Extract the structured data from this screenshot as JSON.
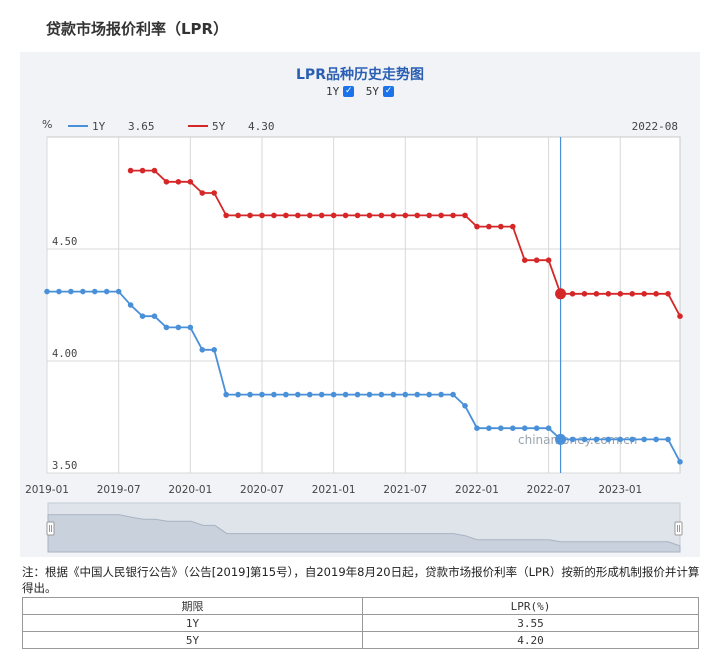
{
  "page": {
    "title": "贷款市场报价利率（LPR）"
  },
  "chart_controls": {
    "title": "LPR品种历史走势图",
    "toggles": [
      {
        "label": "1Y",
        "checked": true
      },
      {
        "label": "5Y",
        "checked": true
      }
    ]
  },
  "chart_data": {
    "type": "line",
    "title": "LPR品种历史走势图",
    "ylabel": "%",
    "ylim": [
      3.5,
      5.0
    ],
    "yticks": [
      "3.50",
      "4.00",
      "4.50"
    ],
    "x_range": [
      "2019-01",
      "2023-06"
    ],
    "xticks": [
      "2019-01",
      "2019-07",
      "2020-01",
      "2020-07",
      "2021-01",
      "2021-07",
      "2022-01",
      "2022-07",
      "2023-01"
    ],
    "grid": true,
    "legend_position": "top-left",
    "tooltip_date": "2022-08",
    "hover_month": "2022-08",
    "watermark": "chinamoney.com.cn",
    "series": [
      {
        "name": "1Y",
        "color": "#4a90d9",
        "current": "3.65",
        "x": [
          "2019-01",
          "2019-02",
          "2019-03",
          "2019-04",
          "2019-05",
          "2019-06",
          "2019-07",
          "2019-08",
          "2019-09",
          "2019-10",
          "2019-11",
          "2019-12",
          "2020-01",
          "2020-02",
          "2020-03",
          "2020-04",
          "2020-05",
          "2020-06",
          "2020-07",
          "2020-08",
          "2020-09",
          "2020-10",
          "2020-11",
          "2020-12",
          "2021-01",
          "2021-02",
          "2021-03",
          "2021-04",
          "2021-05",
          "2021-06",
          "2021-07",
          "2021-08",
          "2021-09",
          "2021-10",
          "2021-11",
          "2021-12",
          "2022-01",
          "2022-02",
          "2022-03",
          "2022-04",
          "2022-05",
          "2022-06",
          "2022-07",
          "2022-08",
          "2022-09",
          "2022-10",
          "2022-11",
          "2022-12",
          "2023-01",
          "2023-02",
          "2023-03",
          "2023-04",
          "2023-05",
          "2023-06"
        ],
        "values": [
          4.31,
          4.31,
          4.31,
          4.31,
          4.31,
          4.31,
          4.31,
          4.25,
          4.2,
          4.2,
          4.15,
          4.15,
          4.15,
          4.05,
          4.05,
          3.85,
          3.85,
          3.85,
          3.85,
          3.85,
          3.85,
          3.85,
          3.85,
          3.85,
          3.85,
          3.85,
          3.85,
          3.85,
          3.85,
          3.85,
          3.85,
          3.85,
          3.85,
          3.85,
          3.85,
          3.8,
          3.7,
          3.7,
          3.7,
          3.7,
          3.7,
          3.7,
          3.7,
          3.65,
          3.65,
          3.65,
          3.65,
          3.65,
          3.65,
          3.65,
          3.65,
          3.65,
          3.65,
          3.55
        ]
      },
      {
        "name": "5Y",
        "color": "#d62728",
        "current": "4.30",
        "x": [
          "2019-08",
          "2019-09",
          "2019-10",
          "2019-11",
          "2019-12",
          "2020-01",
          "2020-02",
          "2020-03",
          "2020-04",
          "2020-05",
          "2020-06",
          "2020-07",
          "2020-08",
          "2020-09",
          "2020-10",
          "2020-11",
          "2020-12",
          "2021-01",
          "2021-02",
          "2021-03",
          "2021-04",
          "2021-05",
          "2021-06",
          "2021-07",
          "2021-08",
          "2021-09",
          "2021-10",
          "2021-11",
          "2021-12",
          "2022-01",
          "2022-02",
          "2022-03",
          "2022-04",
          "2022-05",
          "2022-06",
          "2022-07",
          "2022-08",
          "2022-09",
          "2022-10",
          "2022-11",
          "2022-12",
          "2023-01",
          "2023-02",
          "2023-03",
          "2023-04",
          "2023-05",
          "2023-06"
        ],
        "values": [
          4.85,
          4.85,
          4.85,
          4.8,
          4.8,
          4.8,
          4.75,
          4.75,
          4.65,
          4.65,
          4.65,
          4.65,
          4.65,
          4.65,
          4.65,
          4.65,
          4.65,
          4.65,
          4.65,
          4.65,
          4.65,
          4.65,
          4.65,
          4.65,
          4.65,
          4.65,
          4.65,
          4.65,
          4.65,
          4.6,
          4.6,
          4.6,
          4.6,
          4.45,
          4.45,
          4.45,
          4.3,
          4.3,
          4.3,
          4.3,
          4.3,
          4.3,
          4.3,
          4.3,
          4.3,
          4.3,
          4.2
        ]
      }
    ]
  },
  "note": {
    "text": "注：根据《中国人民银行公告》（公告[2019]第15号），自2019年8月20日起，贷款市场报价利率（LPR）按新的形成机制报价并计算得出。"
  },
  "table": {
    "headers": [
      "期限",
      "LPR(%)"
    ],
    "rows": [
      [
        "1Y",
        "3.55"
      ],
      [
        "5Y",
        "4.20"
      ]
    ]
  }
}
